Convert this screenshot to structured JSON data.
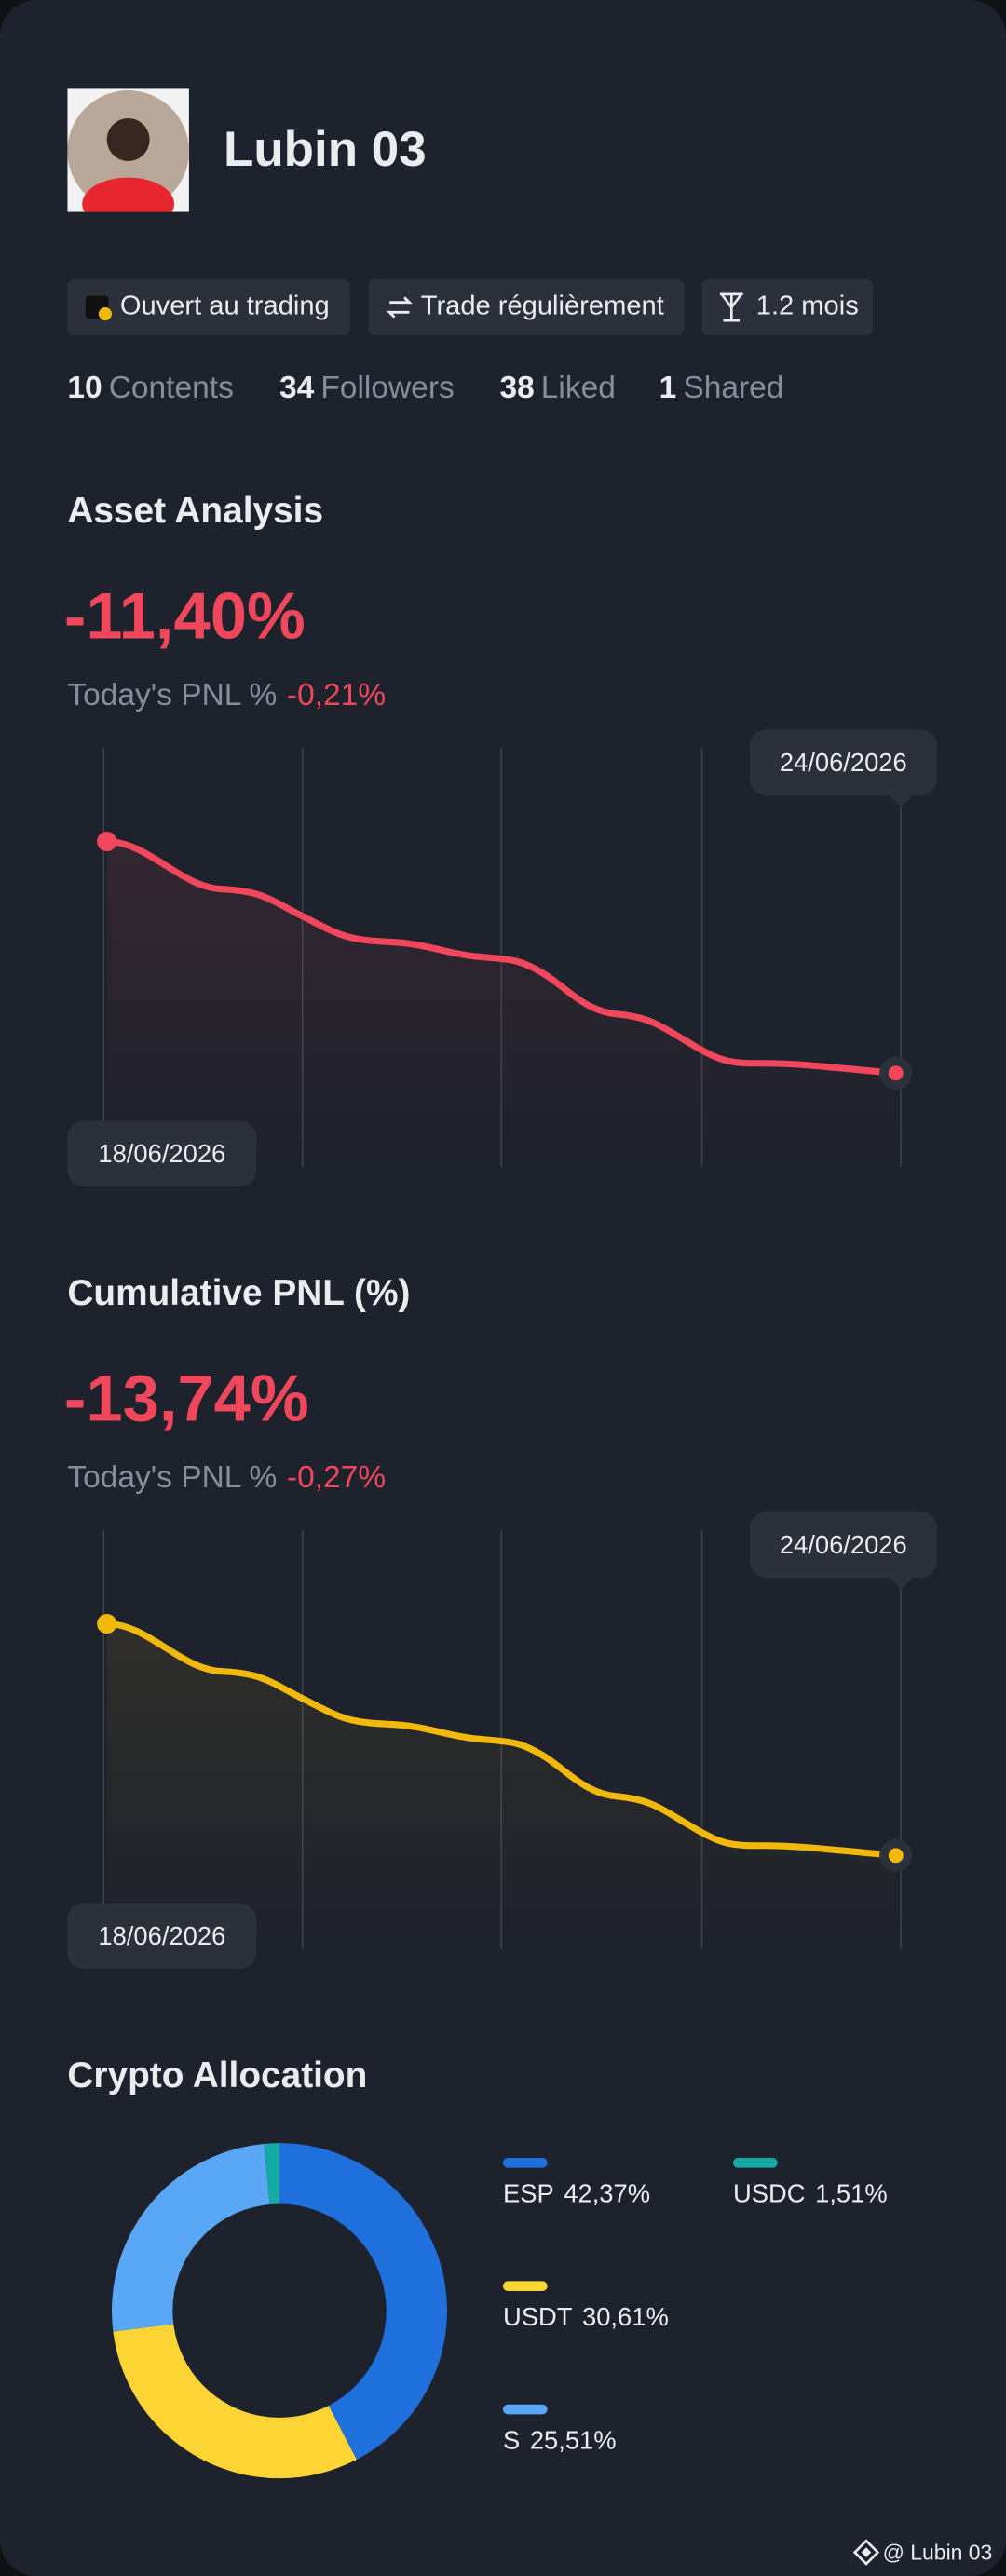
{
  "profile": {
    "name": "Lubin 03",
    "tags": [
      "Ouvert au trading",
      "Trade régulièrement",
      "1.2 mois"
    ],
    "stats": [
      {
        "value": 10,
        "label": "Contents"
      },
      {
        "value": 34,
        "label": "Followers"
      },
      {
        "value": 38,
        "label": "Liked"
      },
      {
        "value": 1,
        "label": "Shared"
      }
    ]
  },
  "asset_analysis": {
    "title": "Asset Analysis",
    "value": "-11,40%",
    "today_label": "Today's PNL %",
    "today_value": "-0,21%",
    "start_date": "18/06/2026",
    "end_date": "24/06/2026"
  },
  "cumulative_pnl": {
    "title": "Cumulative PNL (%)",
    "value": "-13,74%",
    "today_label": "Today's PNL %",
    "today_value": "-0,27%",
    "start_date": "18/06/2026",
    "end_date": "24/06/2026"
  },
  "crypto_allocation": {
    "title": "Crypto Allocation",
    "items": [
      {
        "name": "ESP",
        "value": 42.37,
        "value_label": "42,37%",
        "color": "#1f6fdc"
      },
      {
        "name": "USDT",
        "value": 30.61,
        "value_label": "30,61%",
        "color": "#fcd535"
      },
      {
        "name": "S",
        "value": 25.51,
        "value_label": "25,51%",
        "color": "#5aa7f5"
      },
      {
        "name": "USDC",
        "value": 1.51,
        "value_label": "1,51%",
        "color": "#17a9a6"
      }
    ]
  },
  "footer": "@ Lubin 03"
}
